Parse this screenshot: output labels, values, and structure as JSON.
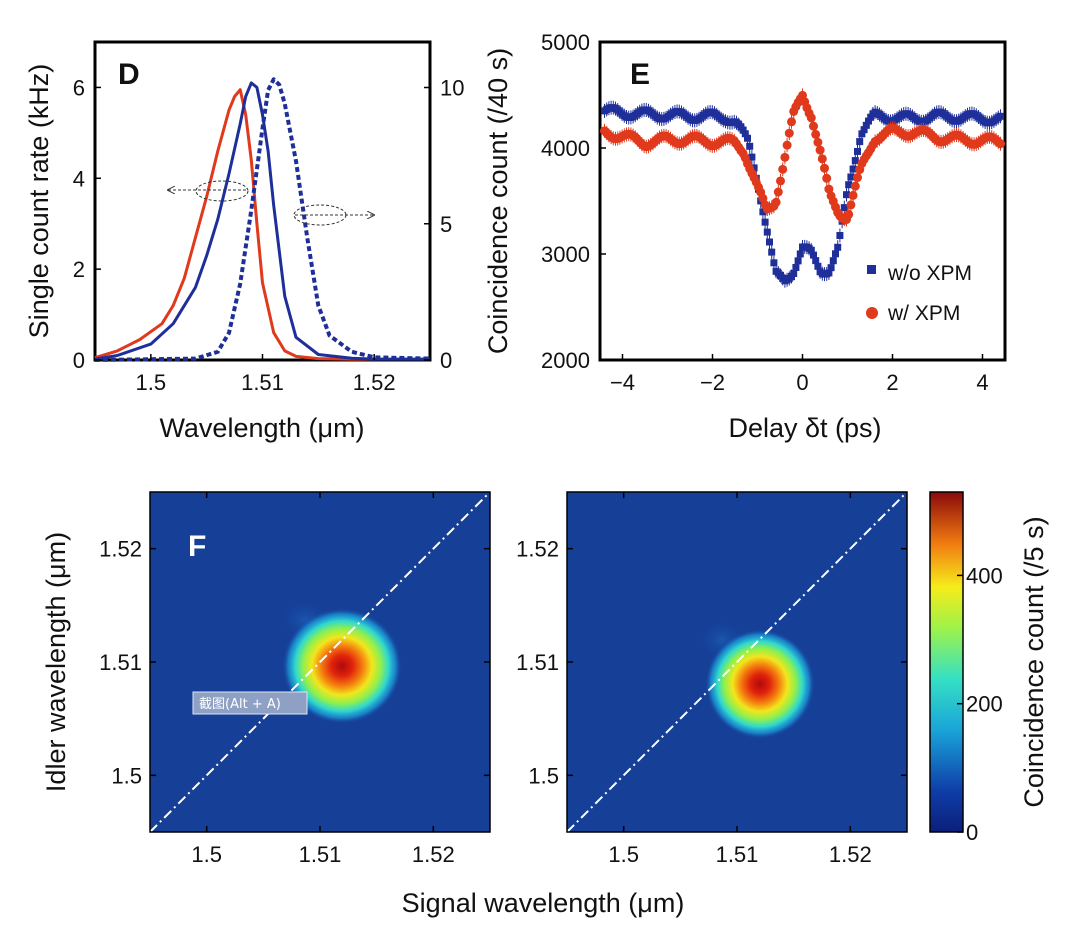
{
  "chart_data": [
    {
      "panel": "D",
      "type": "line",
      "xlabel": "Wavelength (μm)",
      "ylabel_left": "Single count rate (kHz)",
      "ylabel_right": "",
      "xlim": [
        1.495,
        1.525
      ],
      "ylim_left": [
        0,
        7
      ],
      "ylim_right": [
        0,
        11.67
      ],
      "xticks": [
        1.5,
        1.51,
        1.52
      ],
      "xtick_labels": [
        "1.5",
        "1.51",
        "1.52"
      ],
      "yticks_left": [
        0,
        2,
        4,
        6
      ],
      "yticks_right": [
        0,
        5,
        10
      ],
      "series": [
        {
          "name": "red",
          "color": "#e0391c",
          "style": "solid",
          "axis": "left",
          "x": [
            1.495,
            1.497,
            1.499,
            1.501,
            1.502,
            1.503,
            1.504,
            1.505,
            1.506,
            1.507,
            1.5075,
            1.508,
            1.5085,
            1.509,
            1.5095,
            1.51,
            1.511,
            1.512,
            1.513,
            1.515,
            1.518,
            1.52
          ],
          "y": [
            0.05,
            0.2,
            0.45,
            0.8,
            1.2,
            1.8,
            2.7,
            3.6,
            4.6,
            5.5,
            5.8,
            5.95,
            5.4,
            4.4,
            3.0,
            1.7,
            0.6,
            0.2,
            0.08,
            0.03,
            0.02,
            0.02
          ]
        },
        {
          "name": "blue solid",
          "color": "#1f2f9a",
          "style": "solid",
          "axis": "left",
          "x": [
            1.495,
            1.497,
            1.5,
            1.502,
            1.504,
            1.505,
            1.506,
            1.507,
            1.508,
            1.5085,
            1.509,
            1.5095,
            1.51,
            1.5105,
            1.511,
            1.512,
            1.513,
            1.515,
            1.518,
            1.52,
            1.525
          ],
          "y": [
            0.02,
            0.1,
            0.35,
            0.8,
            1.6,
            2.3,
            3.1,
            4.1,
            5.2,
            5.8,
            6.1,
            6.0,
            5.4,
            4.6,
            3.4,
            1.4,
            0.5,
            0.12,
            0.04,
            0.02,
            0.02
          ]
        },
        {
          "name": "blue dotted",
          "color": "#1f2f9a",
          "style": "dotted",
          "axis": "right",
          "x": [
            1.495,
            1.504,
            1.506,
            1.507,
            1.508,
            1.509,
            1.51,
            1.5105,
            1.511,
            1.5115,
            1.512,
            1.513,
            1.514,
            1.515,
            1.516,
            1.518,
            1.52,
            1.525
          ],
          "y": [
            0.0,
            0.05,
            0.3,
            1.0,
            2.8,
            5.5,
            8.5,
            9.9,
            10.3,
            10.1,
            9.4,
            7.3,
            4.5,
            2.0,
            0.9,
            0.3,
            0.1,
            0.05
          ]
        }
      ]
    },
    {
      "panel": "E",
      "type": "scatter",
      "xlabel": "Delay δt (ps)",
      "ylabel": "Coincidence count (/40 s)",
      "xlim": [
        -4.5,
        4.5
      ],
      "ylim": [
        2000,
        5000
      ],
      "xticks": [
        -4,
        -2,
        0,
        2,
        4
      ],
      "xtick_labels": [
        "−4",
        "−2",
        "0",
        "2",
        "4"
      ],
      "yticks": [
        2000,
        3000,
        4000,
        5000
      ],
      "legend_position": "bottom-right",
      "series": [
        {
          "name": "w/o XPM",
          "color": "#1f2f9a",
          "marker": "square",
          "x": [
            -4.4,
            -4.0,
            -3.5,
            -3.0,
            -2.5,
            -2.0,
            -1.7,
            -1.5,
            -1.2,
            -1.0,
            -0.8,
            -0.6,
            -0.4,
            -0.2,
            0.0,
            0.2,
            0.4,
            0.6,
            0.8,
            1.0,
            1.3,
            1.6,
            2.0,
            2.5,
            3.0,
            3.5,
            4.0,
            4.4
          ],
          "y": [
            4350,
            4330,
            4320,
            4310,
            4300,
            4300,
            4290,
            4250,
            4050,
            3700,
            3250,
            2800,
            2750,
            2850,
            3050,
            3000,
            2850,
            2850,
            3050,
            3600,
            4150,
            4300,
            4290,
            4280,
            4300,
            4290,
            4280,
            4270
          ]
        },
        {
          "name": "w/ XPM",
          "color": "#e0391c",
          "marker": "circle",
          "x": [
            -4.4,
            -4.0,
            -3.5,
            -3.0,
            -2.5,
            -2.0,
            -1.5,
            -1.3,
            -1.0,
            -0.8,
            -0.6,
            -0.4,
            -0.2,
            0.0,
            0.2,
            0.4,
            0.6,
            0.8,
            1.0,
            1.3,
            1.6,
            2.0,
            2.5,
            3.0,
            3.5,
            4.0,
            4.4
          ],
          "y": [
            4150,
            4110,
            4050,
            4080,
            4080,
            4060,
            4050,
            3980,
            3620,
            3400,
            3500,
            3900,
            4300,
            4500,
            4320,
            3950,
            3550,
            3400,
            3350,
            3800,
            4100,
            4150,
            4150,
            4100,
            4080,
            4070,
            4060
          ]
        }
      ]
    },
    {
      "panel": "F",
      "type": "heatmap",
      "xlabel": "Signal wavelength (μm)",
      "ylabel": "Idler wavelength (μm)",
      "xlim": [
        1.495,
        1.525
      ],
      "ylim": [
        1.495,
        1.525
      ],
      "xticks": [
        1.5,
        1.51,
        1.52
      ],
      "xtick_labels": [
        "1.5",
        "1.51",
        "1.52"
      ],
      "yticks": [
        1.5,
        1.51,
        1.52
      ],
      "ytick_labels": [
        "1.5",
        "1.51",
        "1.52"
      ],
      "colorbar": {
        "label": "Coincidence count (/5 s)",
        "range": [
          0,
          530
        ],
        "ticks": [
          0,
          200,
          400
        ]
      },
      "maps": [
        {
          "name": "left",
          "peak_x": 1.512,
          "peak_y": 1.51,
          "peak_value": 530,
          "diagonal": true
        },
        {
          "name": "right",
          "peak_x": 1.512,
          "peak_y": 1.508,
          "peak_value": 480,
          "diagonal": true
        }
      ]
    }
  ],
  "annotations": {
    "watermark": "截图(Alt + A)"
  }
}
